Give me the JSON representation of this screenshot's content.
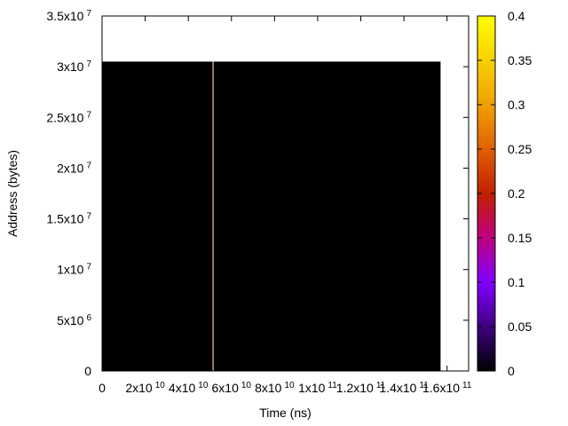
{
  "chart_data": {
    "type": "heatmap",
    "title": "",
    "xlabel": "Time (ns)",
    "ylabel": "Address (bytes)",
    "xlim": [
      0,
      170000000000
    ],
    "ylim": [
      0,
      35000000
    ],
    "x_ticks": [
      {
        "value": 0,
        "base": "0",
        "exp": ""
      },
      {
        "value": 20000000000,
        "base": "2x10",
        "exp": "10"
      },
      {
        "value": 40000000000,
        "base": "4x10",
        "exp": "10"
      },
      {
        "value": 60000000000,
        "base": "6x10",
        "exp": "10"
      },
      {
        "value": 80000000000,
        "base": "8x10",
        "exp": "10"
      },
      {
        "value": 100000000000,
        "base": "1x10",
        "exp": "11"
      },
      {
        "value": 120000000000,
        "base": "1.2x10",
        "exp": "11"
      },
      {
        "value": 140000000000,
        "base": "1.4x10",
        "exp": "11"
      },
      {
        "value": 160000000000,
        "base": "1.6x10",
        "exp": "11"
      }
    ],
    "y_ticks": [
      {
        "value": 0,
        "base": "0",
        "exp": ""
      },
      {
        "value": 5000000,
        "base": "5x10",
        "exp": "6"
      },
      {
        "value": 10000000,
        "base": "1x10",
        "exp": "7"
      },
      {
        "value": 15000000,
        "base": "1.5x10",
        "exp": "7"
      },
      {
        "value": 20000000,
        "base": "2x10",
        "exp": "7"
      },
      {
        "value": 25000000,
        "base": "2.5x10",
        "exp": "7"
      },
      {
        "value": 30000000,
        "base": "3x10",
        "exp": "7"
      },
      {
        "value": 35000000,
        "base": "3.5x10",
        "exp": "7"
      }
    ],
    "heatmap_region": {
      "x": [
        0,
        157000000000
      ],
      "y": [
        0,
        30500000
      ],
      "value": 0
    },
    "highlight_lines": [
      {
        "x": 51500000000,
        "y": [
          0,
          30500000
        ],
        "value": 0.3
      }
    ],
    "colorbar": {
      "range": [
        0,
        0.4
      ],
      "ticks": [
        "0",
        "0.05",
        "0.1",
        "0.15",
        "0.2",
        "0.25",
        "0.3",
        "0.35",
        "0.4"
      ],
      "palette": [
        "#000000",
        "#400080",
        "#8000ff",
        "#bf0080",
        "#c02000",
        "#e06000",
        "#f0a000",
        "#f8d000",
        "#ffff00"
      ]
    },
    "grid": false,
    "legend": "none"
  }
}
